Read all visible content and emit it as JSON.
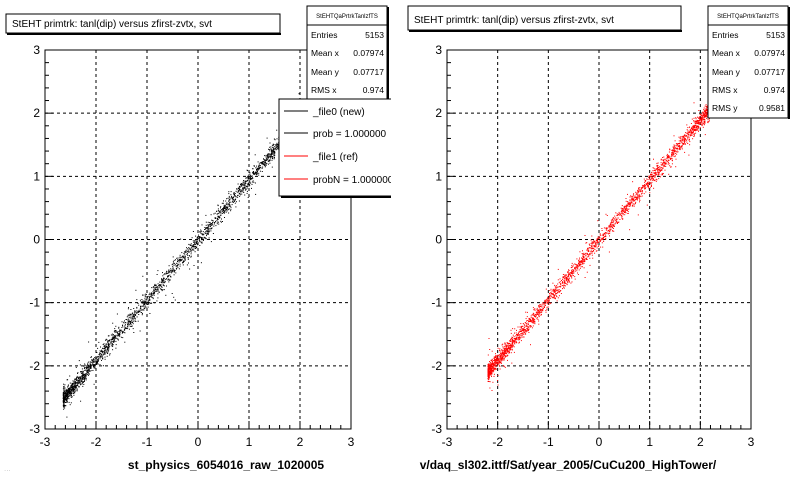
{
  "chart_data": [
    {
      "type": "scatter",
      "title": "StEHT primtrk: tanl(dip) versus zfirst-zvtx, svt",
      "xlabel": "st_physics_6054016_raw_1020005",
      "ylabel": "",
      "xlim": [
        -3,
        3
      ],
      "ylim": [
        -3,
        3
      ],
      "xticks": [
        -3,
        -2,
        -1,
        0,
        1,
        2,
        3
      ],
      "yticks": [
        -3,
        -2,
        -1,
        0,
        1,
        2,
        3
      ],
      "grid": true,
      "series": [
        {
          "name": "_file0 (new)",
          "color": "#000000",
          "slope": 0.95,
          "xrange": [
            -2.65,
            2.05
          ],
          "points": 2600
        }
      ],
      "stats": {
        "header": "StEHTQaPrtrkTanlzfTS",
        "rows": [
          {
            "label": "Entries",
            "value": "5153"
          },
          {
            "label": "Mean x",
            "value": "0.07974"
          },
          {
            "label": "Mean y",
            "value": "0.07717"
          },
          {
            "label": "RMS x",
            "value": "0.974"
          }
        ]
      },
      "legend": {
        "placement": "top-right",
        "entries": [
          {
            "label": "_file0 (new)",
            "color": "#000000"
          },
          {
            "label": "prob = 1.000000",
            "color": "#000000"
          },
          {
            "label": "_file1 (ref)",
            "color": "#ff0000"
          },
          {
            "label": "probN = 1.000000",
            "color": "#ff0000"
          }
        ]
      }
    },
    {
      "type": "scatter",
      "title": "StEHT primtrk: tanl(dip) versus zfirst-zvtx, svt",
      "xlabel": "v/daq_sl302.ittf/Sat/year_2005/CuCu200_HighTower/",
      "ylabel": "",
      "xlim": [
        -3,
        3
      ],
      "ylim": [
        -3,
        3
      ],
      "xticks": [
        -3,
        -2,
        -1,
        0,
        1,
        2,
        3
      ],
      "yticks": [
        -3,
        -2,
        -1,
        0,
        1,
        2,
        3
      ],
      "grid": true,
      "series": [
        {
          "name": "_file1 (ref)",
          "color": "#ff0000",
          "slope": 0.95,
          "xrange": [
            -2.2,
            2.25
          ],
          "points": 2600
        }
      ],
      "stats": {
        "header": "StEHTQaPrtrkTanlzfTS",
        "rows": [
          {
            "label": "Entries",
            "value": "5153"
          },
          {
            "label": "Mean x",
            "value": "0.07974"
          },
          {
            "label": "Mean y",
            "value": "0.07717"
          },
          {
            "label": "RMS x",
            "value": "0.974"
          },
          {
            "label": "RMS y",
            "value": "0.9581"
          }
        ]
      }
    }
  ],
  "footer_faint": "..."
}
